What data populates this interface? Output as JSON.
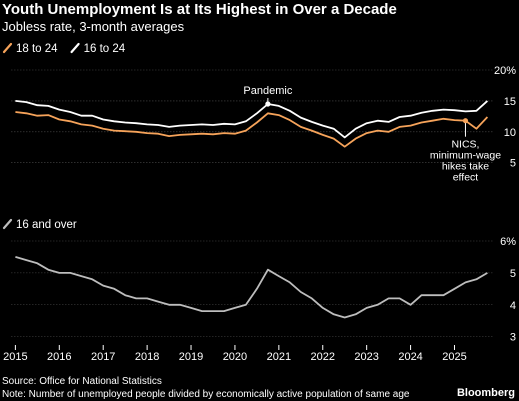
{
  "header": {
    "title": "Youth Unemployment Is at Its Highest in Over a Decade",
    "subtitle": "Jobless rate, 3-month averages"
  },
  "footer": {
    "source": "Source: Office for National Statistics",
    "note": "Note: Number of unemployed people divided by economically active population of same age",
    "brand": "Bloomberg"
  },
  "colors": {
    "background": "#000000",
    "series_18_24": "#f6a35a",
    "series_16_24": "#ffffff",
    "series_16_over": "#bdbdbd",
    "gridline": "#4a4a4a",
    "axis_text": "#ffffff"
  },
  "chart_data": [
    {
      "type": "line",
      "panel": "top",
      "x_unit": "year",
      "xlim": [
        2014.9,
        2025.9
      ],
      "ylim": [
        3.5,
        20
      ],
      "yticks": [
        5,
        10,
        15,
        20
      ],
      "ytick_labels": [
        "5",
        "10",
        "15",
        "20%"
      ],
      "grid": true,
      "legend_position": "top-left",
      "series": [
        {
          "name": "18 to 24",
          "color": "#f6a35a",
          "x": [
            2015.0,
            2015.25,
            2015.5,
            2015.75,
            2016.0,
            2016.25,
            2016.5,
            2016.75,
            2017.0,
            2017.25,
            2017.5,
            2017.75,
            2018.0,
            2018.25,
            2018.5,
            2018.75,
            2019.0,
            2019.25,
            2019.5,
            2019.75,
            2020.0,
            2020.25,
            2020.5,
            2020.75,
            2021.0,
            2021.25,
            2021.5,
            2021.75,
            2022.0,
            2022.25,
            2022.5,
            2022.75,
            2023.0,
            2023.25,
            2023.5,
            2023.75,
            2024.0,
            2024.25,
            2024.5,
            2024.75,
            2025.0,
            2025.25,
            2025.5,
            2025.75
          ],
          "values": [
            13.2,
            13.0,
            12.6,
            12.7,
            12.0,
            11.7,
            11.2,
            11.0,
            10.5,
            10.2,
            10.1,
            10.0,
            9.8,
            9.7,
            9.3,
            9.5,
            9.6,
            9.7,
            9.6,
            9.8,
            9.7,
            10.2,
            11.5,
            13.0,
            12.7,
            11.9,
            10.8,
            10.2,
            9.5,
            8.9,
            7.6,
            8.9,
            9.8,
            10.2,
            10.0,
            10.8,
            11.0,
            11.5,
            11.8,
            12.1,
            11.9,
            11.8,
            10.5,
            12.4
          ]
        },
        {
          "name": "16 to 24",
          "color": "#ffffff",
          "x": [
            2015.0,
            2015.25,
            2015.5,
            2015.75,
            2016.0,
            2016.25,
            2016.5,
            2016.75,
            2017.0,
            2017.25,
            2017.5,
            2017.75,
            2018.0,
            2018.25,
            2018.5,
            2018.75,
            2019.0,
            2019.25,
            2019.5,
            2019.75,
            2020.0,
            2020.25,
            2020.5,
            2020.75,
            2021.0,
            2021.25,
            2021.5,
            2021.75,
            2022.0,
            2022.25,
            2022.5,
            2022.75,
            2023.0,
            2023.25,
            2023.5,
            2023.75,
            2024.0,
            2024.25,
            2024.5,
            2024.75,
            2025.0,
            2025.25,
            2025.5,
            2025.75
          ],
          "values": [
            15.0,
            14.8,
            14.3,
            14.2,
            13.6,
            13.2,
            12.6,
            12.6,
            12.0,
            11.7,
            11.5,
            11.4,
            11.2,
            11.1,
            10.8,
            11.0,
            11.1,
            11.2,
            11.1,
            11.3,
            11.2,
            11.7,
            13.0,
            14.5,
            14.2,
            13.4,
            12.3,
            11.6,
            11.0,
            10.5,
            9.1,
            10.5,
            11.4,
            11.8,
            11.6,
            12.4,
            12.6,
            13.1,
            13.4,
            13.6,
            13.5,
            13.3,
            13.4,
            15.0
          ]
        }
      ],
      "annotations": [
        {
          "text": "Pandemic",
          "x": 2020.75,
          "y": 14.5
        },
        {
          "text": "NICS, minimum-wage hikes take effect",
          "lines": [
            "NICS,",
            "minimum-wage",
            "hikes take",
            "effect"
          ],
          "x": 2025.25,
          "y": 11.8
        }
      ]
    },
    {
      "type": "line",
      "panel": "bottom",
      "x_unit": "year",
      "xlim": [
        2014.9,
        2025.9
      ],
      "ylim": [
        2.8,
        6
      ],
      "yticks": [
        3,
        4,
        5,
        6
      ],
      "ytick_labels": [
        "3",
        "4",
        "5",
        "6%"
      ],
      "grid": true,
      "legend_position": "top-left",
      "series": [
        {
          "name": "16 and over",
          "color": "#bdbdbd",
          "x": [
            2015.0,
            2015.25,
            2015.5,
            2015.75,
            2016.0,
            2016.25,
            2016.5,
            2016.75,
            2017.0,
            2017.25,
            2017.5,
            2017.75,
            2018.0,
            2018.25,
            2018.5,
            2018.75,
            2019.0,
            2019.25,
            2019.5,
            2019.75,
            2020.0,
            2020.25,
            2020.5,
            2020.75,
            2021.0,
            2021.25,
            2021.5,
            2021.75,
            2022.0,
            2022.25,
            2022.5,
            2022.75,
            2023.0,
            2023.25,
            2023.5,
            2023.75,
            2024.0,
            2024.25,
            2024.5,
            2024.75,
            2025.0,
            2025.25,
            2025.5,
            2025.75
          ],
          "values": [
            5.5,
            5.4,
            5.3,
            5.1,
            5.0,
            5.0,
            4.9,
            4.8,
            4.6,
            4.5,
            4.3,
            4.2,
            4.2,
            4.1,
            4.0,
            4.0,
            3.9,
            3.8,
            3.8,
            3.8,
            3.9,
            4.0,
            4.5,
            5.1,
            4.9,
            4.7,
            4.4,
            4.2,
            3.9,
            3.7,
            3.6,
            3.7,
            3.9,
            4.0,
            4.2,
            4.2,
            4.0,
            4.3,
            4.3,
            4.3,
            4.5,
            4.7,
            4.8,
            5.0
          ]
        }
      ]
    }
  ],
  "xaxis": {
    "tick_labels": [
      "2015",
      "2016",
      "2017",
      "2018",
      "2019",
      "2020",
      "2021",
      "2022",
      "2023",
      "2024",
      "2025"
    ],
    "tick_values": [
      2015,
      2016,
      2017,
      2018,
      2019,
      2020,
      2021,
      2022,
      2023,
      2024,
      2025
    ]
  }
}
